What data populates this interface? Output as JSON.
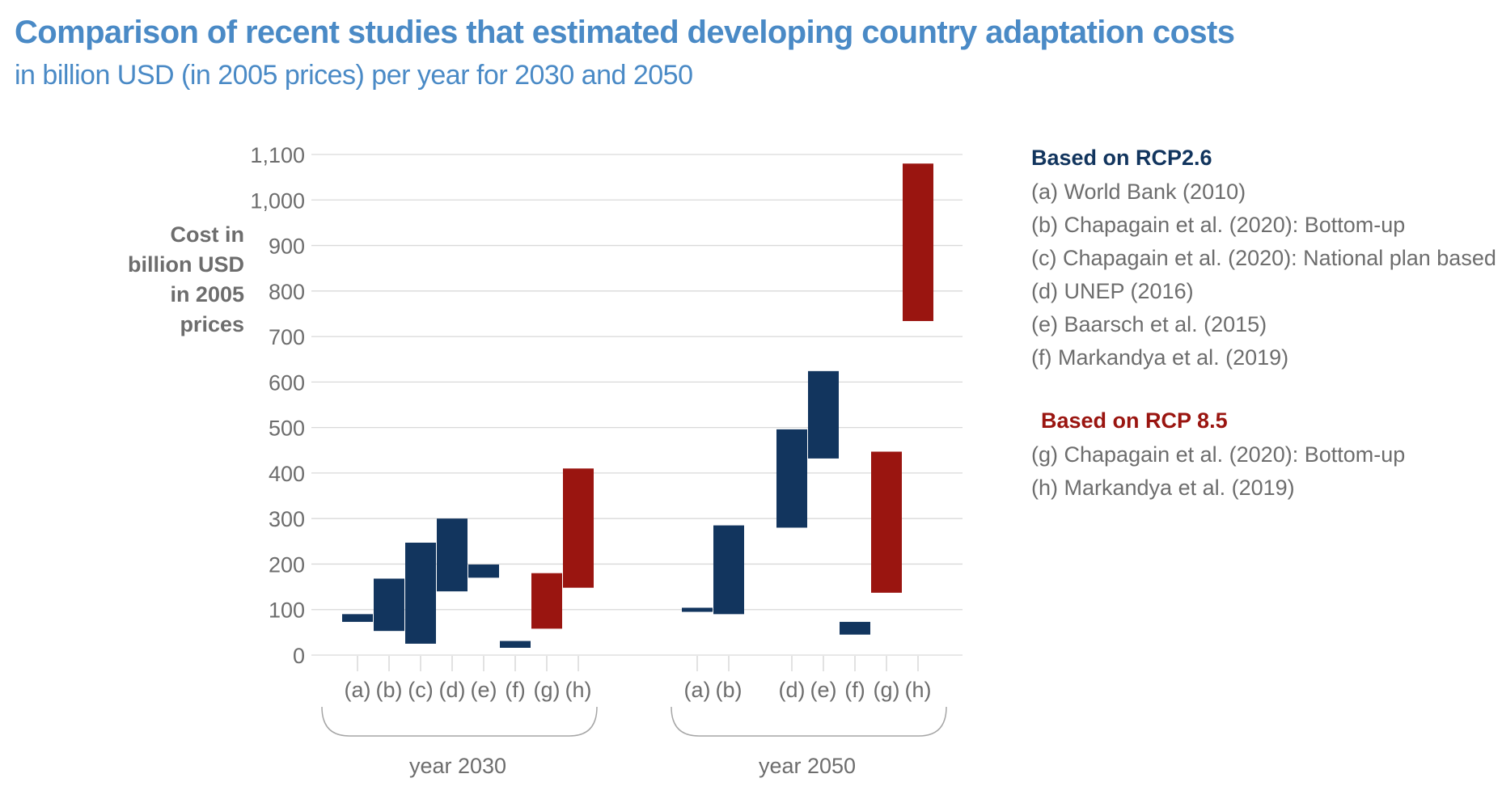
{
  "title": "Comparison of recent studies that estimated developing country adaptation costs",
  "subtitle": "in billion USD (in 2005 prices) per year for 2030 and 2050",
  "colors": {
    "title": "#4a8ac6",
    "rcp26": "#12355e",
    "rcp85": "#9a1510",
    "text": "#6d6d6d",
    "grid": "#d9d9d9"
  },
  "chart_data": {
    "type": "bar",
    "subtype": "floating-range",
    "ylabel": "Cost in billion USD in 2005 prices",
    "ylim": [
      0,
      1100
    ],
    "yticks": [
      0,
      100,
      200,
      300,
      400,
      500,
      600,
      700,
      800,
      900,
      1000,
      1100
    ],
    "ytick_labels": [
      "0",
      "100",
      "200",
      "300",
      "400",
      "500",
      "600",
      "700",
      "800",
      "900",
      "1,000",
      "1,100"
    ],
    "grid": true,
    "legend_position": "right",
    "groups": [
      {
        "label": "year 2030",
        "bars": [
          {
            "category": "(a)",
            "low": 73,
            "high": 90,
            "scenario": "RCP2.6"
          },
          {
            "category": "(b)",
            "low": 53,
            "high": 168,
            "scenario": "RCP2.6"
          },
          {
            "category": "(c)",
            "low": 25,
            "high": 247,
            "scenario": "RCP2.6"
          },
          {
            "category": "(d)",
            "low": 140,
            "high": 300,
            "scenario": "RCP2.6"
          },
          {
            "category": "(e)",
            "low": 170,
            "high": 199,
            "scenario": "RCP2.6"
          },
          {
            "category": "(f)",
            "low": 16,
            "high": 31,
            "scenario": "RCP2.6"
          },
          {
            "category": "(g)",
            "low": 58,
            "high": 180,
            "scenario": "RCP8.5"
          },
          {
            "category": "(h)",
            "low": 148,
            "high": 410,
            "scenario": "RCP8.5"
          }
        ]
      },
      {
        "label": "year 2050",
        "bars": [
          {
            "category": "(a)",
            "low": 95,
            "high": 104,
            "scenario": "RCP2.6"
          },
          {
            "category": "(b)",
            "low": 90,
            "high": 285,
            "scenario": "RCP2.6"
          },
          {
            "category": "(d)",
            "low": 280,
            "high": 496,
            "scenario": "RCP2.6"
          },
          {
            "category": "(e)",
            "low": 432,
            "high": 624,
            "scenario": "RCP2.6"
          },
          {
            "category": "(f)",
            "low": 45,
            "high": 73,
            "scenario": "RCP2.6"
          },
          {
            "category": "(g)",
            "low": 137,
            "high": 447,
            "scenario": "RCP8.5"
          },
          {
            "category": "(h)",
            "low": 734,
            "high": 1080,
            "scenario": "RCP8.5"
          }
        ]
      }
    ]
  },
  "legend": {
    "rcp26": {
      "heading": "Based on RCP2.6",
      "items": [
        "(a) World Bank (2010)",
        "(b) Chapagain et al. (2020): Bottom-up",
        "(c) Chapagain et al. (2020): National plan based",
        "(d) UNEP (2016)",
        "(e) Baarsch et al. (2015)",
        "(f) Markandya et al. (2019)"
      ]
    },
    "rcp85": {
      "heading": "Based on RCP 8.5",
      "items": [
        "(g) Chapagain et al. (2020): Bottom-up",
        "(h) Markandya et al. (2019)"
      ]
    }
  }
}
